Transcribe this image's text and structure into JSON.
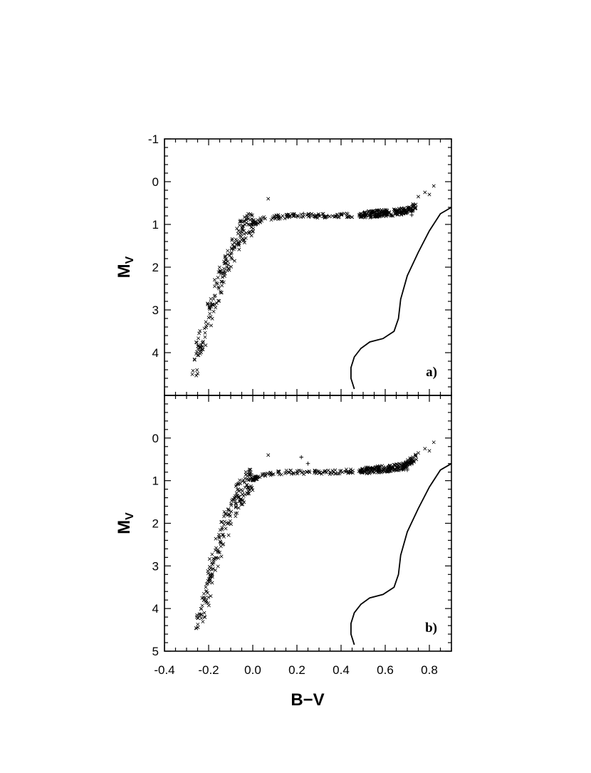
{
  "chart_data": [
    {
      "type": "scatter",
      "panel_label": "a)",
      "xlabel": "B−V",
      "ylabel": "M",
      "ylabel_sub": "V",
      "xlim": [
        -0.4,
        0.9
      ],
      "ylim": [
        -1,
        5
      ],
      "y_inverted": true,
      "x_ticks": [
        -0.4,
        -0.2,
        0.0,
        0.2,
        0.4,
        0.6,
        0.8
      ],
      "y_ticks": [
        -1,
        0,
        1,
        2,
        3,
        4
      ],
      "y_tick_labels": [
        "-1",
        "0",
        "1",
        "2",
        "3",
        "4"
      ],
      "grid": false,
      "series": [
        {
          "marker": "x",
          "trend": [
            [
              -0.27,
              4.4
            ],
            [
              -0.24,
              3.9
            ],
            [
              -0.2,
              3.2
            ],
            [
              -0.16,
              2.5
            ],
            [
              -0.12,
              1.9
            ],
            [
              -0.08,
              1.4
            ],
            [
              -0.04,
              1.1
            ],
            [
              0.0,
              0.98
            ],
            [
              0.05,
              0.88
            ],
            [
              0.1,
              0.83
            ],
            [
              0.2,
              0.8
            ],
            [
              0.3,
              0.8
            ],
            [
              0.4,
              0.79
            ],
            [
              0.48,
              0.79
            ],
            [
              0.55,
              0.75
            ],
            [
              0.65,
              0.72
            ],
            [
              0.72,
              0.65
            ],
            [
              0.76,
              0.45
            ],
            [
              0.82,
              0.25
            ]
          ]
        },
        {
          "marker": "+",
          "points": [
            [
              0.1,
              0.85
            ],
            [
              0.16,
              0.78
            ],
            [
              0.2,
              0.82
            ],
            [
              0.23,
              0.75
            ],
            [
              0.26,
              0.82
            ],
            [
              0.3,
              0.78
            ],
            [
              0.34,
              0.8
            ],
            [
              0.38,
              0.78
            ],
            [
              0.44,
              0.82
            ],
            [
              0.72,
              0.7
            ],
            [
              0.72,
              0.78
            ]
          ]
        }
      ],
      "curves": [
        {
          "style": "solid",
          "points": [
            [
              0.46,
              4.85
            ],
            [
              0.445,
              4.6
            ],
            [
              0.445,
              4.35
            ],
            [
              0.46,
              4.1
            ],
            [
              0.49,
              3.9
            ],
            [
              0.53,
              3.75
            ],
            [
              0.59,
              3.67
            ],
            [
              0.64,
              3.5
            ],
            [
              0.66,
              3.2
            ],
            [
              0.67,
              2.75
            ],
            [
              0.7,
              2.2
            ],
            [
              0.75,
              1.65
            ],
            [
              0.8,
              1.15
            ],
            [
              0.85,
              0.75
            ],
            [
              0.9,
              0.6
            ]
          ]
        }
      ]
    },
    {
      "type": "scatter",
      "panel_label": "b)",
      "xlabel": "B−V",
      "ylabel": "M",
      "ylabel_sub": "V",
      "xlim": [
        -0.4,
        0.9
      ],
      "ylim": [
        -1,
        5
      ],
      "y_inverted": true,
      "x_ticks": [
        -0.4,
        -0.2,
        0.0,
        0.2,
        0.4,
        0.6,
        0.8
      ],
      "x_tick_labels": [
        "-0.4",
        "-0.2",
        "0.0",
        "0.2",
        "0.4",
        "0.6",
        "0.8"
      ],
      "y_ticks": [
        0,
        1,
        2,
        3,
        4,
        5
      ],
      "y_tick_labels": [
        "0",
        "1",
        "2",
        "3",
        "4",
        "5"
      ],
      "grid": false,
      "series": [
        {
          "marker": "x",
          "trend": [
            [
              -0.25,
              4.4
            ],
            [
              -0.22,
              3.8
            ],
            [
              -0.18,
              3.0
            ],
            [
              -0.14,
              2.3
            ],
            [
              -0.1,
              1.7
            ],
            [
              -0.06,
              1.3
            ],
            [
              -0.02,
              1.05
            ],
            [
              0.02,
              0.92
            ],
            [
              0.08,
              0.83
            ],
            [
              0.15,
              0.8
            ],
            [
              0.25,
              0.8
            ],
            [
              0.35,
              0.8
            ],
            [
              0.45,
              0.78
            ],
            [
              0.52,
              0.76
            ],
            [
              0.6,
              0.72
            ],
            [
              0.68,
              0.67
            ],
            [
              0.73,
              0.5
            ],
            [
              0.77,
              0.33
            ]
          ]
        },
        {
          "marker": "+",
          "points": [
            [
              0.22,
              0.45
            ],
            [
              0.25,
              0.6
            ],
            [
              0.2,
              0.82
            ],
            [
              0.3,
              0.8
            ],
            [
              0.35,
              0.82
            ],
            [
              0.42,
              0.78
            ],
            [
              0.5,
              0.8
            ],
            [
              0.7,
              0.75
            ]
          ]
        }
      ],
      "curves": [
        {
          "style": "solid",
          "points": [
            [
              0.46,
              4.85
            ],
            [
              0.445,
              4.6
            ],
            [
              0.445,
              4.35
            ],
            [
              0.46,
              4.1
            ],
            [
              0.49,
              3.9
            ],
            [
              0.53,
              3.75
            ],
            [
              0.59,
              3.67
            ],
            [
              0.64,
              3.5
            ],
            [
              0.66,
              3.2
            ],
            [
              0.67,
              2.75
            ],
            [
              0.7,
              2.2
            ],
            [
              0.75,
              1.65
            ],
            [
              0.8,
              1.15
            ],
            [
              0.85,
              0.75
            ],
            [
              0.9,
              0.6
            ]
          ]
        }
      ]
    }
  ]
}
